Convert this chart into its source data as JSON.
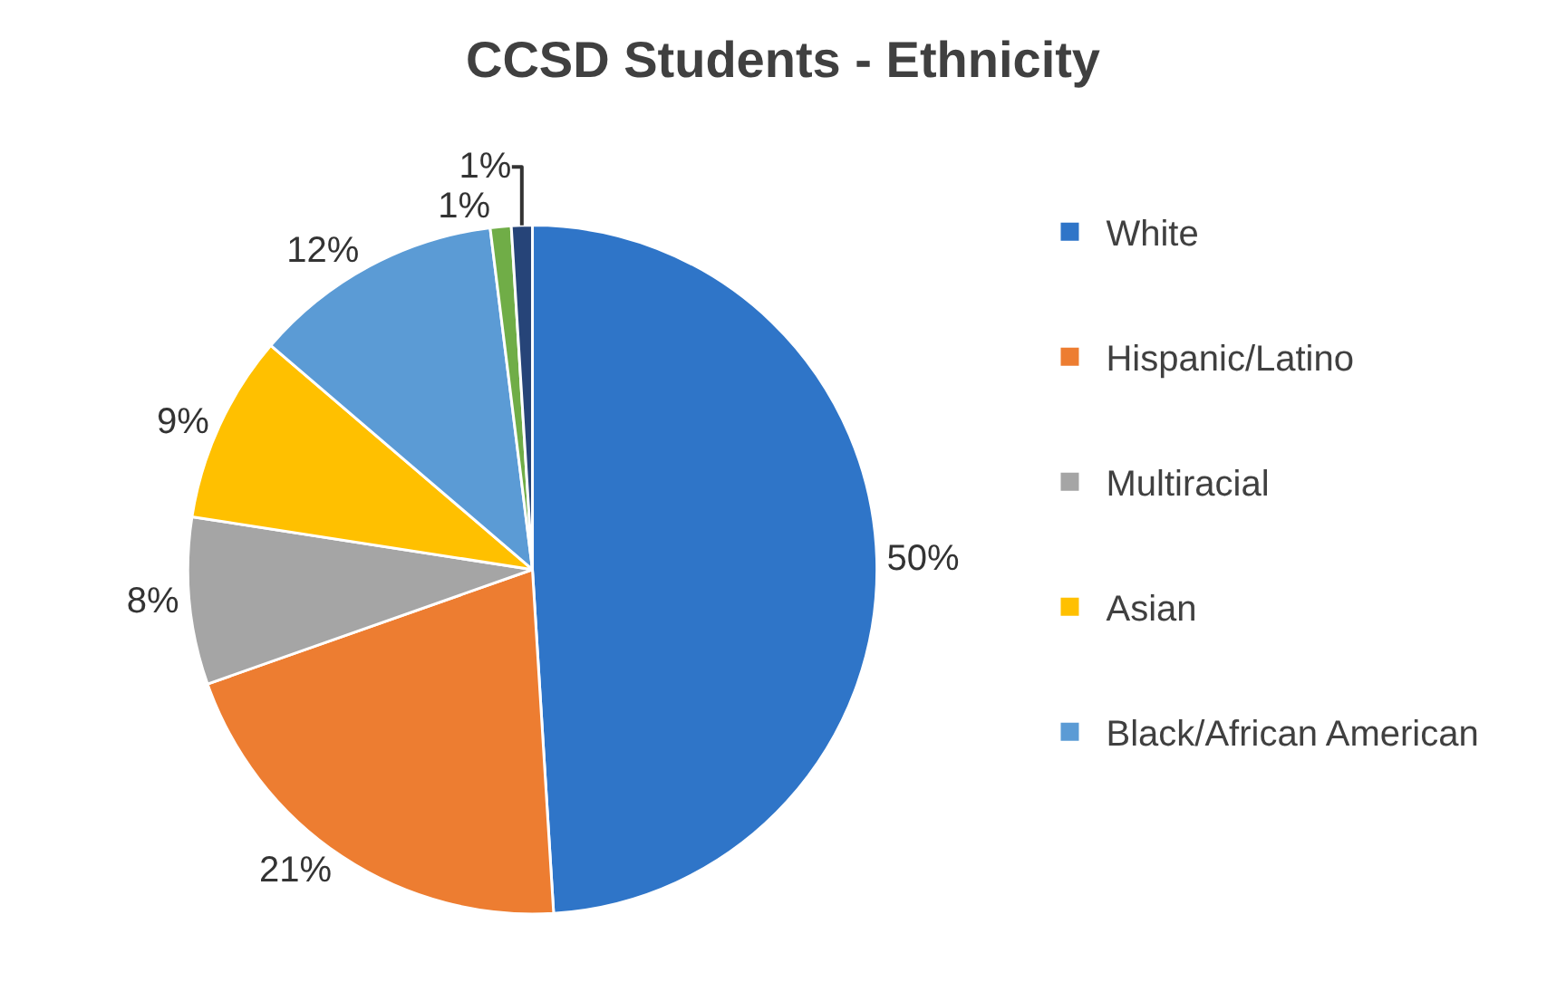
{
  "chart_data": {
    "type": "pie",
    "title": "CCSD Students - Ethnicity",
    "categories": [
      "White",
      "Hispanic/Latino",
      "Multiracial",
      "Asian",
      "Black/African American",
      null,
      null
    ],
    "values": [
      50,
      21,
      8,
      9,
      12,
      1,
      1
    ],
    "value_labels": [
      "50%",
      "21%",
      "8%",
      "9%",
      "12%",
      "1%",
      "1%"
    ],
    "colors": [
      "#2f75c8",
      "#ed7d31",
      "#a5a5a5",
      "#ffc000",
      "#5b9bd5",
      "#70ad47",
      "#264478"
    ],
    "legend": "right"
  }
}
